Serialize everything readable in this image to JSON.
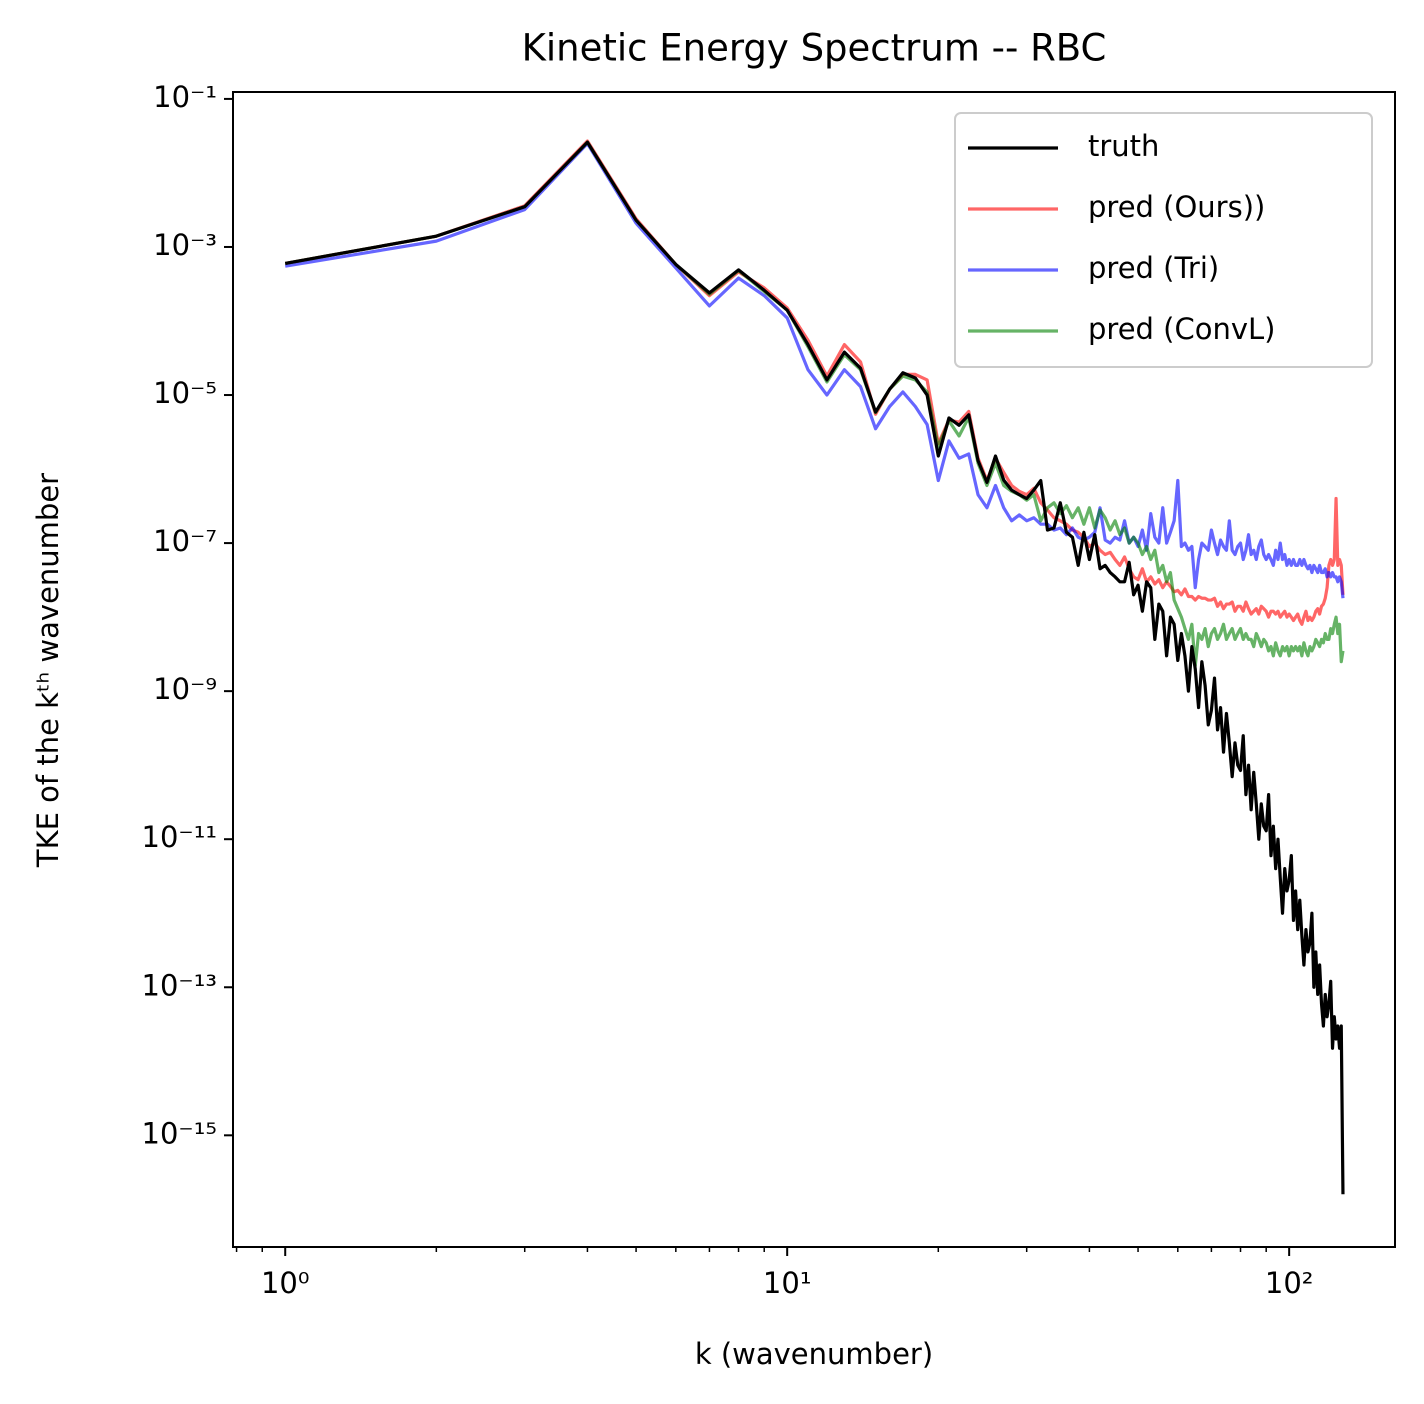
{
  "chart_data": {
    "type": "line",
    "title": "Kinetic Energy Spectrum -- RBC",
    "xlabel": "k (wavenumber)",
    "ylabel": "TKE of the kᵗʰ wavenumber",
    "xscale": "log",
    "yscale": "log",
    "xlim": [
      0.787,
      162.5
    ],
    "ylim": [
      3.1e-17,
      0.124
    ],
    "xticks": [
      {
        "value": 1,
        "label": "10⁰"
      },
      {
        "value": 10,
        "label": "10¹"
      },
      {
        "value": 100,
        "label": "10²"
      }
    ],
    "xminorticks": [
      0.8,
      0.9,
      2,
      3,
      4,
      5,
      6,
      7,
      8,
      9,
      20,
      30,
      40,
      50,
      60,
      70,
      80,
      90
    ],
    "yticks": [
      {
        "value": 0.1,
        "label": "10⁻¹"
      },
      {
        "value": 0.001,
        "label": "10⁻³"
      },
      {
        "value": 1e-05,
        "label": "10⁻⁵"
      },
      {
        "value": 1e-07,
        "label": "10⁻⁷"
      },
      {
        "value": 1e-09,
        "label": "10⁻⁹"
      },
      {
        "value": 1e-11,
        "label": "10⁻¹¹"
      },
      {
        "value": 1e-13,
        "label": "10⁻¹³"
      },
      {
        "value": 1e-15,
        "label": "10⁻¹⁵"
      }
    ],
    "legend": "upper right",
    "x": [
      1,
      2,
      3,
      4,
      5,
      6,
      7,
      8,
      9,
      10,
      11,
      12,
      13,
      14,
      15,
      16,
      17,
      18,
      19,
      20,
      21,
      22,
      23,
      24,
      25,
      26,
      27,
      28,
      29,
      30,
      31,
      32,
      33,
      34,
      35,
      36,
      37,
      38,
      39,
      40,
      41,
      42,
      43,
      44,
      45,
      46,
      47,
      48,
      49,
      50,
      51,
      52,
      53,
      54,
      55,
      56,
      57,
      58,
      59,
      60,
      61,
      62,
      63,
      64,
      65,
      66,
      67,
      68,
      69,
      70,
      71,
      72,
      73,
      74,
      75,
      76,
      77,
      78,
      79,
      80,
      81,
      82,
      83,
      84,
      85,
      86,
      87,
      88,
      89,
      90,
      91,
      92,
      93,
      94,
      95,
      96,
      97,
      98,
      99,
      100,
      101,
      102,
      103,
      104,
      105,
      106,
      107,
      108,
      109,
      110,
      111,
      112,
      113,
      114,
      115,
      116,
      117,
      118,
      119,
      120,
      121,
      122,
      123,
      124,
      125,
      126,
      127,
      128
    ],
    "series": [
      {
        "name": "pred (Ours))",
        "color": "#ff0000",
        "alpha": 0.6,
        "values": [
          0.0006,
          0.0014,
          0.0036,
          0.027,
          0.0024,
          0.00058,
          0.00022,
          0.00046,
          0.00028,
          0.00015,
          5.5e-05,
          1.8e-05,
          4.8e-05,
          2.8e-05,
          5.5e-06,
          1.2e-05,
          1.9e-05,
          1.9e-05,
          1.6e-05,
          2.2e-06,
          4.6e-06,
          4.3e-06,
          6e-06,
          1.4e-06,
          7e-07,
          1.4e-06,
          9e-07,
          6e-07,
          5e-07,
          4.5e-07,
          5.5e-07,
          3.5e-07,
          2.8e-07,
          2.2e-07,
          2e-07,
          1.8e-07,
          1.5e-07,
          1.4e-07,
          1.2e-07,
          9e-08,
          1e-07,
          8e-08,
          7e-08,
          7.5e-08,
          6e-08,
          5e-08,
          6.5e-08,
          4.5e-08,
          3.5e-08,
          3.2e-08,
          4.5e-08,
          3e-08,
          3.5e-08,
          2.8e-08,
          3.2e-08,
          2.5e-08,
          3e-08,
          2.6e-08,
          2.2e-08,
          2.3e-08,
          2e-08,
          2.4e-08,
          1.9e-08,
          1.9e-08,
          1.7e-08,
          1.9e-08,
          1.8e-08,
          1.8e-08,
          1.7e-08,
          1.7e-08,
          1.8e-08,
          1.4e-08,
          1.6e-08,
          1.3e-08,
          1.5e-08,
          1.5e-08,
          1.6e-08,
          1.2e-08,
          1.4e-08,
          1.4e-08,
          1.2e-08,
          1.6e-08,
          1.3e-08,
          1.1e-08,
          1.2e-08,
          1.3e-08,
          1.1e-08,
          1.4e-08,
          1.3e-08,
          1.2e-08,
          1e-08,
          1.2e-08,
          1.2e-08,
          1.1e-08,
          1.2e-08,
          1e-08,
          1.1e-08,
          1.2e-08,
          1e-08,
          1.1e-08,
          1e-08,
          9e-09,
          1e-08,
          1.1e-08,
          9e-09,
          8e-09,
          1e-08,
          1.2e-08,
          9e-09,
          1e-08,
          9e-09,
          1e-08,
          1.2e-08,
          1.3e-08,
          1.1e-08,
          1.4e-08,
          1.5e-08,
          1.8e-08,
          2.5e-08,
          5e-08,
          6e-08,
          5e-08,
          6e-08,
          4e-07,
          5e-08,
          6e-08,
          5e-08,
          2e-08
        ]
      },
      {
        "name": "pred (Tri)",
        "color": "#0000ff",
        "alpha": 0.6,
        "values": [
          0.00055,
          0.0012,
          0.0032,
          0.025,
          0.0021,
          0.00052,
          0.00016,
          0.00038,
          0.00022,
          0.00011,
          2.2e-05,
          1e-05,
          2.2e-05,
          1.3e-05,
          3.5e-06,
          7e-06,
          1.1e-05,
          7e-06,
          4e-06,
          7e-07,
          2.4e-06,
          1.4e-06,
          1.6e-06,
          4.5e-07,
          3e-07,
          6e-07,
          3e-07,
          2e-07,
          2.4e-07,
          2e-07,
          2.2e-07,
          1.8e-07,
          1.8e-07,
          1.5e-07,
          1.6e-07,
          1.3e-07,
          1.6e-07,
          1.2e-07,
          1.1e-07,
          1.2e-07,
          1.4e-07,
          3e-07,
          1.1e-07,
          1e-07,
          1.2e-07,
          1.1e-07,
          2e-07,
          1e-07,
          1.2e-07,
          9e-08,
          1.5e-07,
          8e-08,
          2.5e-07,
          1.2e-07,
          1e-07,
          3e-07,
          1e-07,
          1.4e-07,
          2e-07,
          7e-07,
          9e-08,
          1e-07,
          8e-08,
          9e-08,
          2.5e-08,
          6e-08,
          1e-07,
          9e-08,
          8e-08,
          1.5e-07,
          1e-07,
          7e-08,
          1.1e-07,
          9e-08,
          8e-08,
          2e-07,
          8e-08,
          7e-08,
          9e-08,
          1e-07,
          6e-08,
          8e-08,
          1.3e-07,
          7e-08,
          8e-08,
          6e-08,
          9e-08,
          1.1e-07,
          7e-08,
          6e-08,
          7e-08,
          6e-08,
          5e-08,
          8e-08,
          6e-08,
          1e-07,
          6e-08,
          7e-08,
          5e-08,
          6e-08,
          5e-08,
          6e-08,
          5e-08,
          5e-08,
          6e-08,
          5e-08,
          6e-08,
          5e-08,
          4.5e-08,
          5e-08,
          4e-08,
          5e-08,
          4.5e-08,
          4e-08,
          5e-08,
          4e-08,
          4e-08,
          4.5e-08,
          3.5e-08,
          4e-08,
          3.5e-08,
          4e-08,
          3.5e-08,
          3.5e-08,
          3e-08,
          3.5e-08,
          3e-08,
          1.8e-08
        ]
      },
      {
        "name": "pred (ConvL)",
        "color": "#008000",
        "alpha": 0.6,
        "values": [
          0.0006,
          0.0014,
          0.0035,
          0.026,
          0.0023,
          0.00058,
          0.00023,
          0.00048,
          0.00025,
          0.00014,
          4.5e-05,
          1.5e-05,
          3.5e-05,
          2.2e-05,
          5.8e-06,
          1.2e-05,
          1.8e-05,
          1.6e-05,
          1.1e-05,
          2e-06,
          4.5e-06,
          2.8e-06,
          5e-06,
          1.2e-06,
          6e-07,
          1.2e-06,
          6e-07,
          5e-07,
          4.5e-07,
          3.8e-07,
          4.5e-07,
          2e-07,
          3e-07,
          3.5e-07,
          2.5e-07,
          3.2e-07,
          2.2e-07,
          3e-07,
          1.8e-07,
          3e-07,
          1.6e-07,
          2.8e-07,
          2.2e-07,
          1.5e-07,
          2e-07,
          1.3e-07,
          1.6e-07,
          1e-07,
          1.2e-07,
          1e-07,
          7e-08,
          9e-08,
          6e-08,
          8e-08,
          4e-08,
          5e-08,
          3e-08,
          4e-08,
          1.7e-08,
          1.3e-08,
          1e-08,
          7e-09,
          5e-09,
          8e-09,
          2.2e-09,
          6e-09,
          5e-09,
          7e-09,
          4e-09,
          6e-09,
          7e-09,
          5e-09,
          6e-09,
          8e-09,
          5e-09,
          6e-09,
          7e-09,
          5e-09,
          6e-09,
          7e-09,
          5e-09,
          6e-09,
          5e-09,
          5e-09,
          4e-09,
          6e-09,
          5e-09,
          4e-09,
          5e-09,
          4.5e-09,
          3.5e-09,
          4e-09,
          3e-09,
          4.5e-09,
          3.5e-09,
          3e-09,
          4e-09,
          3.5e-09,
          4e-09,
          3e-09,
          4e-09,
          3.5e-09,
          4e-09,
          3.5e-09,
          4e-09,
          3e-09,
          4.5e-09,
          3.5e-09,
          3e-09,
          4e-09,
          3.5e-09,
          4e-09,
          5e-09,
          4.5e-09,
          4e-09,
          5e-09,
          4.5e-09,
          6e-09,
          5e-09,
          5e-09,
          7e-09,
          6e-09,
          8e-09,
          1e-08,
          6e-09,
          8e-09,
          2.5e-09,
          3.5e-09
        ]
      },
      {
        "name": "truth",
        "color": "#000000",
        "alpha": 1,
        "values": [
          0.0006,
          0.0014,
          0.0035,
          0.026,
          0.0023,
          0.00058,
          0.00024,
          0.00049,
          0.00026,
          0.00014,
          4.8e-05,
          1.6e-05,
          3.8e-05,
          2.3e-05,
          5.9e-06,
          1.2e-05,
          2e-05,
          1.7e-05,
          1e-05,
          1.5e-06,
          4.9e-06,
          3.9e-06,
          5.4e-06,
          1.3e-06,
          6.6e-07,
          1.5e-06,
          7.1e-07,
          5.2e-07,
          4.5e-07,
          4e-07,
          5.2e-07,
          7e-07,
          1.5e-07,
          1.6e-07,
          3.5e-07,
          1.4e-07,
          1.2e-07,
          5e-08,
          1.4e-07,
          6e-08,
          1.3e-07,
          4.5e-08,
          5e-08,
          4e-08,
          3.5e-08,
          3e-08,
          3e-08,
          5.5e-08,
          2e-08,
          2.7e-08,
          1.2e-08,
          3e-08,
          2.5e-08,
          5e-09,
          1.5e-08,
          1.2e-08,
          3e-09,
          1e-08,
          8e-09,
          2.6e-09,
          6e-09,
          3e-09,
          1e-09,
          4e-09,
          2e-09,
          6e-10,
          2.5e-09,
          1.2e-09,
          3.5e-10,
          5.5e-10,
          1.5e-09,
          3e-10,
          6e-10,
          1.5e-10,
          5e-10,
          2e-10,
          7e-11,
          2e-10,
          1e-10,
          8.5e-11,
          2.5e-10,
          4e-11,
          1e-10,
          2.5e-11,
          8e-11,
          3e-11,
          1e-11,
          3e-11,
          1.5e-11,
          1.3e-11,
          4e-11,
          6e-12,
          1.5e-11,
          4e-12,
          1e-11,
          3e-12,
          1e-12,
          4e-12,
          2e-12,
          2.8e-12,
          6e-12,
          8e-13,
          2e-12,
          6e-13,
          1.5e-12,
          5e-13,
          2e-13,
          6e-13,
          3e-13,
          4e-13,
          1e-12,
          1e-13,
          3e-13,
          8e-14,
          2e-13,
          6e-14,
          3e-14,
          8e-14,
          4e-14,
          6e-14,
          1.2e-13,
          1.5e-14,
          4e-14,
          2e-14,
          3e-14,
          1.5e-14,
          3e-14,
          1.6e-16
        ]
      }
    ],
    "legend_order": [
      3,
      0,
      1,
      2
    ]
  }
}
